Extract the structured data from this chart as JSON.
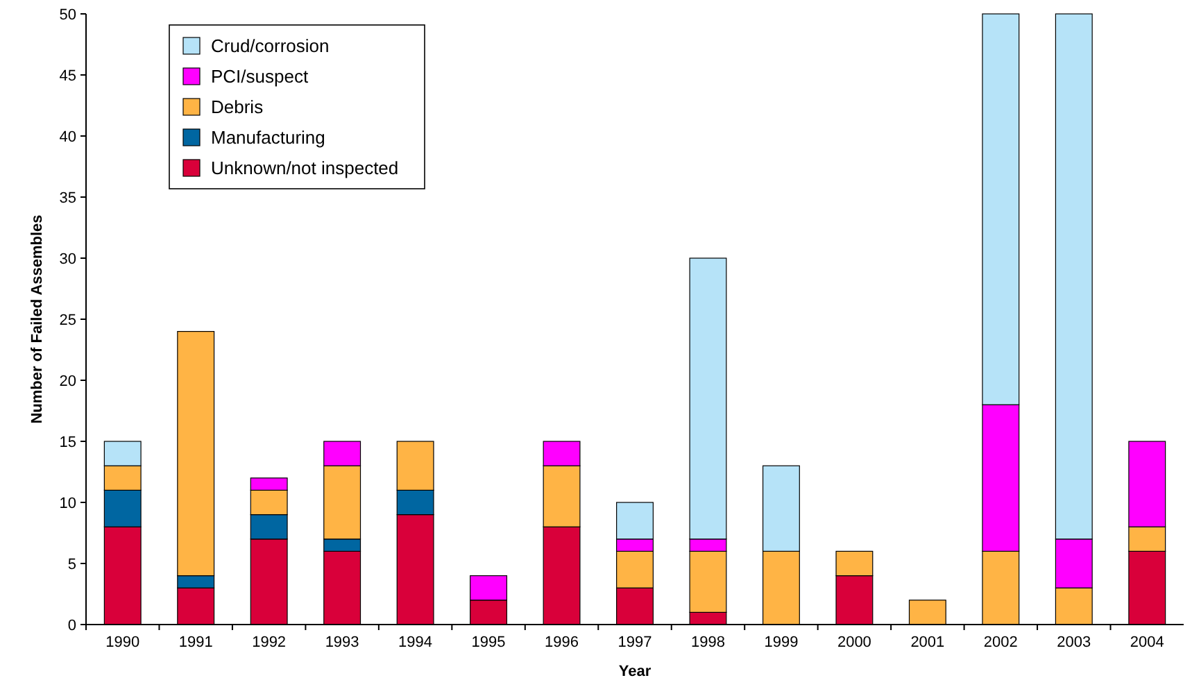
{
  "chart_data": {
    "type": "bar",
    "stacked": true,
    "xlabel": "Year",
    "ylabel": "Number of Failed Assembles",
    "categories": [
      "1990",
      "1991",
      "1992",
      "1993",
      "1994",
      "1995",
      "1996",
      "1997",
      "1998",
      "1999",
      "2000",
      "2001",
      "2002",
      "2003",
      "2004"
    ],
    "series": [
      {
        "name": "Unknown/not inspected",
        "color": "#d9003a",
        "values": [
          8,
          3,
          7,
          6,
          9,
          2,
          8,
          3,
          1,
          0,
          4,
          0,
          0,
          0,
          6
        ]
      },
      {
        "name": "Manufacturing",
        "color": "#0066a1",
        "values": [
          3,
          1,
          2,
          1,
          2,
          0,
          0,
          0,
          0,
          0,
          0,
          0,
          0,
          0,
          0
        ]
      },
      {
        "name": "Debris",
        "color": "#ffb445",
        "values": [
          2,
          20,
          2,
          6,
          4,
          0,
          5,
          3,
          5,
          6,
          2,
          2,
          6,
          3,
          2
        ]
      },
      {
        "name": "PCI/suspect",
        "color": "#ff00ff",
        "values": [
          0,
          0,
          1,
          2,
          0,
          2,
          2,
          1,
          1,
          0,
          0,
          0,
          12,
          4,
          7
        ]
      },
      {
        "name": "Crud/corrosion",
        "color": "#b6e3f8",
        "values": [
          2,
          0,
          0,
          0,
          0,
          0,
          0,
          3,
          23,
          7,
          0,
          0,
          32,
          43,
          0
        ]
      }
    ],
    "ylim": [
      0,
      50
    ],
    "yticks": [
      0,
      5,
      10,
      15,
      20,
      25,
      30,
      35,
      40,
      45,
      50
    ],
    "legend": "top left",
    "grid": false
  }
}
